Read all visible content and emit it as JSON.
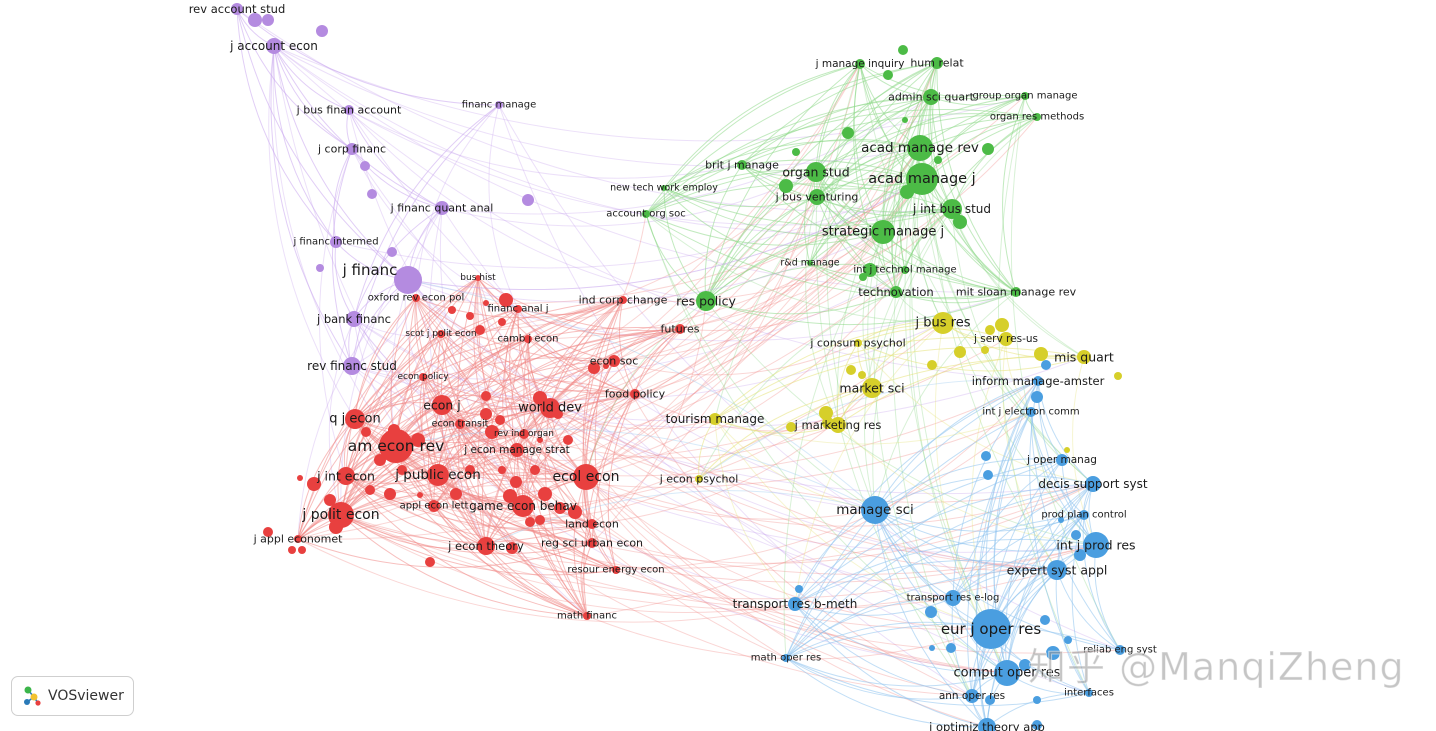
{
  "colors": {
    "purple": "#b48be0",
    "red": "#e8403f",
    "green": "#4cbb46",
    "yellow": "#d6cf2a",
    "blue": "#4a9ee0"
  },
  "edge_colors": {
    "purple": "#c9a6ee",
    "red": "#f08a88",
    "green": "#8fd88a",
    "yellow": "#e6e27a",
    "blue": "#8ec2ee"
  },
  "nodes": [
    {
      "id": "rev account stud",
      "c": "purple",
      "r": 6,
      "fs": 11.5
    },
    {
      "id": "j account econ",
      "c": "purple",
      "r": 8,
      "fs": 12
    },
    {
      "id": "j bus finan account",
      "c": "purple",
      "r": 5,
      "fs": 11
    },
    {
      "id": "financ manage",
      "c": "purple",
      "r": 4,
      "fs": 10
    },
    {
      "id": "j corp financ",
      "c": "purple",
      "r": 6,
      "fs": 11
    },
    {
      "id": "j financ quant anal",
      "c": "purple",
      "r": 7,
      "fs": 11
    },
    {
      "id": "j financ intermed",
      "c": "purple",
      "r": 6,
      "fs": 10
    },
    {
      "id": "j financ",
      "c": "purple",
      "r": 14,
      "fs": 15
    },
    {
      "id": "j bank financ",
      "c": "purple",
      "r": 8,
      "fs": 11.5
    },
    {
      "id": "rev financ stud",
      "c": "purple",
      "r": 9,
      "fs": 12
    },
    {
      "id": "bus hist",
      "c": "red",
      "r": 3,
      "fs": 9
    },
    {
      "id": "oxford rev econ pol",
      "c": "red",
      "r": 4,
      "fs": 10
    },
    {
      "id": "financ anal j",
      "c": "red",
      "r": 4,
      "fs": 10
    },
    {
      "id": "scot j polit econ",
      "c": "red",
      "r": 4,
      "fs": 9
    },
    {
      "id": "camb j econ",
      "c": "red",
      "r": 4,
      "fs": 10
    },
    {
      "id": "ind corp change",
      "c": "red",
      "r": 4,
      "fs": 11
    },
    {
      "id": "futures",
      "c": "red",
      "r": 5,
      "fs": 11
    },
    {
      "id": "econ soc",
      "c": "red",
      "r": 6,
      "fs": 11
    },
    {
      "id": "econ policy",
      "c": "red",
      "r": 4,
      "fs": 9
    },
    {
      "id": "food policy",
      "c": "red",
      "r": 5,
      "fs": 11
    },
    {
      "id": "econ j",
      "c": "red",
      "r": 10,
      "fs": 12.5
    },
    {
      "id": "world dev",
      "c": "red",
      "r": 10,
      "fs": 13
    },
    {
      "id": "q j econ",
      "c": "red",
      "r": 10,
      "fs": 13
    },
    {
      "id": "econ transit",
      "c": "red",
      "r": 5,
      "fs": 9.5
    },
    {
      "id": "rev ind organ",
      "c": "red",
      "r": 5,
      "fs": 9
    },
    {
      "id": "am econ rev",
      "c": "red",
      "r": 17,
      "fs": 15.5
    },
    {
      "id": "j econ manage strat",
      "c": "red",
      "r": 7,
      "fs": 10.5
    },
    {
      "id": "j int econ",
      "c": "red",
      "r": 9,
      "fs": 12.5
    },
    {
      "id": "j public econ",
      "c": "red",
      "r": 11,
      "fs": 13.5
    },
    {
      "id": "ecol econ",
      "c": "red",
      "r": 13,
      "fs": 14
    },
    {
      "id": "appl econ lett",
      "c": "red",
      "r": 6,
      "fs": 10
    },
    {
      "id": "game econ behav",
      "c": "red",
      "r": 11,
      "fs": 12
    },
    {
      "id": "j polit econ",
      "c": "red",
      "r": 13,
      "fs": 14
    },
    {
      "id": "land econ",
      "c": "red",
      "r": 5,
      "fs": 11
    },
    {
      "id": "j appl economet",
      "c": "red",
      "r": 4,
      "fs": 11
    },
    {
      "id": "j econ theory",
      "c": "red",
      "r": 9,
      "fs": 11.5
    },
    {
      "id": "reg sci urban econ",
      "c": "red",
      "r": 5,
      "fs": 11
    },
    {
      "id": "resour energy econ",
      "c": "red",
      "r": 4,
      "fs": 10
    },
    {
      "id": "math financ",
      "c": "red",
      "r": 4,
      "fs": 10
    },
    {
      "id": "j manage inquiry",
      "c": "green",
      "r": 5,
      "fs": 10.5
    },
    {
      "id": "hum relat",
      "c": "green",
      "r": 6,
      "fs": 11
    },
    {
      "id": "admin sci quart",
      "c": "green",
      "r": 8,
      "fs": 11
    },
    {
      "id": "group organ manage",
      "c": "green",
      "r": 4,
      "fs": 10
    },
    {
      "id": "organ res methods",
      "c": "green",
      "r": 4,
      "fs": 10
    },
    {
      "id": "acad manage rev",
      "c": "green",
      "r": 13,
      "fs": 13.5
    },
    {
      "id": "brit j manage",
      "c": "green",
      "r": 5,
      "fs": 11
    },
    {
      "id": "organ stud",
      "c": "green",
      "r": 10,
      "fs": 12.5
    },
    {
      "id": "acad manage j",
      "c": "green",
      "r": 16,
      "fs": 14.5
    },
    {
      "id": "new tech work employ",
      "c": "green",
      "r": 3,
      "fs": 9.5
    },
    {
      "id": "j bus venturing",
      "c": "green",
      "r": 8,
      "fs": 11
    },
    {
      "id": "j int bus stud",
      "c": "green",
      "r": 10,
      "fs": 12
    },
    {
      "id": "account org soc",
      "c": "green",
      "r": 4,
      "fs": 10
    },
    {
      "id": "strategic manage j",
      "c": "green",
      "r": 12,
      "fs": 13
    },
    {
      "id": "r&d manage",
      "c": "green",
      "r": 3,
      "fs": 9.5
    },
    {
      "id": "int j technol manage",
      "c": "green",
      "r": 4,
      "fs": 10
    },
    {
      "id": "res policy",
      "c": "green",
      "r": 10,
      "fs": 12.5
    },
    {
      "id": "technovation",
      "c": "green",
      "r": 6,
      "fs": 11.5
    },
    {
      "id": "mit sloan manage rev",
      "c": "green",
      "r": 5,
      "fs": 11
    },
    {
      "id": "j bus res",
      "c": "yellow",
      "r": 11,
      "fs": 13
    },
    {
      "id": "j serv res-us",
      "c": "yellow",
      "r": 7,
      "fs": 10.5
    },
    {
      "id": "j consum psychol",
      "c": "yellow",
      "r": 4,
      "fs": 11
    },
    {
      "id": "mis quart",
      "c": "yellow",
      "r": 7,
      "fs": 12.5
    },
    {
      "id": "market sci",
      "c": "yellow",
      "r": 10,
      "fs": 12.5
    },
    {
      "id": "inform manage-amster",
      "c": "blue",
      "r": 5,
      "fs": 11.5
    },
    {
      "id": "tourism manage",
      "c": "yellow",
      "r": 6,
      "fs": 12
    },
    {
      "id": "j marketing res",
      "c": "yellow",
      "r": 8,
      "fs": 11.5
    },
    {
      "id": "int j electron comm",
      "c": "blue",
      "r": 5,
      "fs": 10
    },
    {
      "id": "j oper manag",
      "c": "blue",
      "r": 6,
      "fs": 10.5
    },
    {
      "id": "j econ psychol",
      "c": "yellow",
      "r": 4,
      "fs": 11
    },
    {
      "id": "decis support syst",
      "c": "blue",
      "r": 8,
      "fs": 12
    },
    {
      "id": "manage sci",
      "c": "blue",
      "r": 14,
      "fs": 13.5
    },
    {
      "id": "prod plan control",
      "c": "blue",
      "r": 5,
      "fs": 10
    },
    {
      "id": "int j prod res",
      "c": "blue",
      "r": 13,
      "fs": 12.5
    },
    {
      "id": "expert syst appl",
      "c": "blue",
      "r": 10,
      "fs": 12.5
    },
    {
      "id": "transport res b-meth",
      "c": "blue",
      "r": 7,
      "fs": 12
    },
    {
      "id": "transport res e-log",
      "c": "blue",
      "r": 8,
      "fs": 10
    },
    {
      "id": "eur j oper res",
      "c": "blue",
      "r": 20,
      "fs": 15
    },
    {
      "id": "reliab eng syst",
      "c": "blue",
      "r": 5,
      "fs": 10
    },
    {
      "id": "math oper res",
      "c": "blue",
      "r": 4,
      "fs": 10
    },
    {
      "id": "comput oper res",
      "c": "blue",
      "r": 13,
      "fs": 13
    },
    {
      "id": "ann oper res",
      "c": "blue",
      "r": 7,
      "fs": 10.5
    },
    {
      "id": "interfaces",
      "c": "blue",
      "r": 4,
      "fs": 10
    },
    {
      "id": "j optimiz theory app",
      "c": "blue",
      "r": 9,
      "fs": 11.5
    }
  ],
  "logo": {
    "text": "VOSviewer",
    "icon": "vosviewer-network-icon"
  },
  "watermark": "知乎 @ManqiZheng"
}
